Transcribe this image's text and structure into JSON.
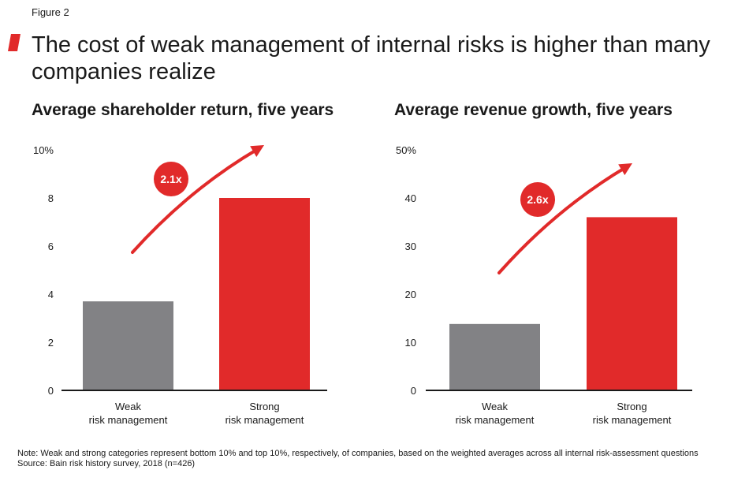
{
  "figure_label": "Figure 2",
  "title": "The cost of weak management of internal risks is higher than many companies realize",
  "colors": {
    "accent": "#e12a2a",
    "weak_bar": "#828285",
    "strong_bar": "#e12a2a",
    "axis": "#1a1a1a"
  },
  "chart_data": [
    {
      "type": "bar",
      "title": "Average shareholder return, five years",
      "categories": [
        [
          "Weak",
          "risk management"
        ],
        [
          "Strong",
          "risk management"
        ]
      ],
      "values": [
        3.7,
        8.0
      ],
      "ylim": [
        0,
        10
      ],
      "yticks": [
        0,
        2,
        4,
        6,
        8,
        10
      ],
      "ytick_labels": [
        "0",
        "2",
        "4",
        "6",
        "8",
        "10%"
      ],
      "annotation": "2.1x",
      "xlabel": "",
      "ylabel": ""
    },
    {
      "type": "bar",
      "title": "Average revenue growth, five years",
      "categories": [
        [
          "Weak",
          "risk management"
        ],
        [
          "Strong",
          "risk management"
        ]
      ],
      "values": [
        13.8,
        36.0
      ],
      "ylim": [
        0,
        50
      ],
      "yticks": [
        0,
        10,
        20,
        30,
        40,
        50
      ],
      "ytick_labels": [
        "0",
        "10",
        "20",
        "30",
        "40",
        "50%"
      ],
      "annotation": "2.6x",
      "xlabel": "",
      "ylabel": ""
    }
  ],
  "note": "Note: Weak and strong categories represent bottom 10% and top 10%, respectively, of companies, based on the weighted averages across all internal risk-assessment questions",
  "source": "Source: Bain risk history survey, 2018 (n=426)"
}
